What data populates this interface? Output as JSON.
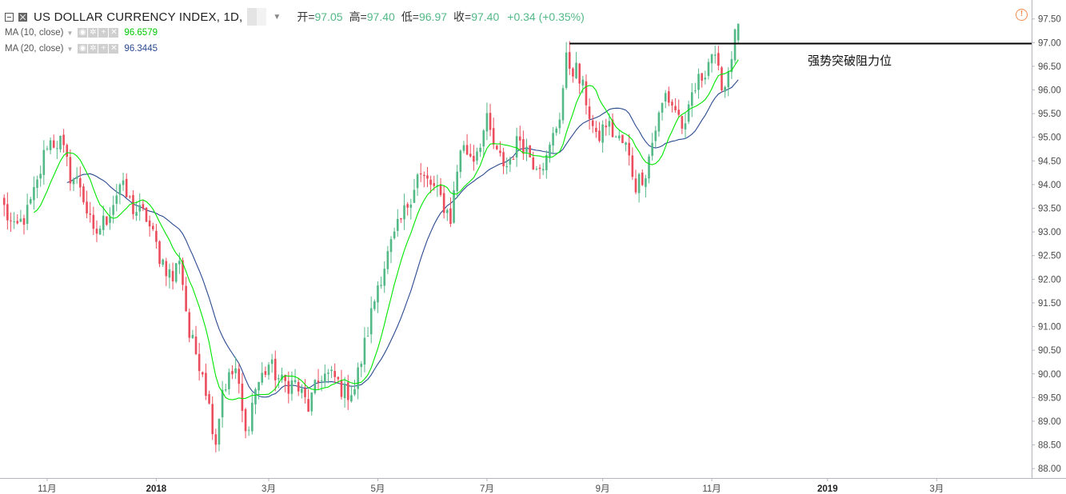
{
  "header": {
    "symbol": "US DOLLAR CURRENCY INDEX, 1D,",
    "open_label": "开=",
    "open": "97.05",
    "high_label": "高=",
    "high": "97.40",
    "low_label": "低=",
    "low": "96.97",
    "close_label": "收=",
    "close": "97.40",
    "change": "+0.34 (+0.35%)"
  },
  "indicators": [
    {
      "label": "MA (10, close)",
      "value": "96.6579",
      "color": "#00e600"
    },
    {
      "label": "MA (20, close)",
      "value": "96.3445",
      "color": "#2a4a8f"
    }
  ],
  "annotation": "强势突破阻力位",
  "colors": {
    "up": "#53b987",
    "down": "#eb4d5c",
    "ma10": "#00e600",
    "ma20": "#2a4a8f",
    "last_price_bg": "#53b987",
    "level_bg": "#000000"
  },
  "chart_data": {
    "type": "candlestick",
    "y_range": [
      87.8,
      97.85
    ],
    "y_ticks": [
      "88.00",
      "88.50",
      "89.00",
      "89.50",
      "90.00",
      "90.50",
      "91.00",
      "91.50",
      "92.00",
      "92.50",
      "93.00",
      "93.50",
      "94.00",
      "94.50",
      "95.00",
      "95.50",
      "96.00",
      "96.50",
      "97.00",
      "97.50"
    ],
    "x_ticks": [
      "11月",
      "2018",
      "3月",
      "5月",
      "7月",
      "9月",
      "11月",
      "2019",
      "3月"
    ],
    "x_tick_index": [
      13,
      46,
      80,
      113,
      146,
      181,
      214,
      249,
      282
    ],
    "x_total_slots": 312,
    "resistance_level": 96.98,
    "resistance_label": "96.98",
    "resistance_start_index": 171,
    "last_price": 97.4,
    "last_price_label": "97.40",
    "close_anchors": [
      [
        0,
        93.5
      ],
      [
        3,
        93.0
      ],
      [
        7,
        93.4
      ],
      [
        10,
        94.0
      ],
      [
        13,
        94.9
      ],
      [
        17,
        94.9
      ],
      [
        20,
        94.2
      ],
      [
        23,
        94.0
      ],
      [
        27,
        92.9
      ],
      [
        31,
        93.3
      ],
      [
        35,
        94.0
      ],
      [
        39,
        93.5
      ],
      [
        43,
        93.3
      ],
      [
        47,
        92.5
      ],
      [
        51,
        92.0
      ],
      [
        53,
        92.5
      ],
      [
        56,
        90.8
      ],
      [
        60,
        90.1
      ],
      [
        62,
        89.3
      ],
      [
        64,
        88.6
      ],
      [
        66,
        89.7
      ],
      [
        70,
        90.1
      ],
      [
        73,
        88.7
      ],
      [
        76,
        89.7
      ],
      [
        80,
        90.2
      ],
      [
        84,
        89.8
      ],
      [
        88,
        89.8
      ],
      [
        92,
        89.3
      ],
      [
        96,
        90.0
      ],
      [
        100,
        89.9
      ],
      [
        103,
        89.6
      ],
      [
        106,
        89.7
      ],
      [
        109,
        90.6
      ],
      [
        113,
        91.9
      ],
      [
        117,
        92.7
      ],
      [
        121,
        93.4
      ],
      [
        125,
        94.2
      ],
      [
        129,
        94.0
      ],
      [
        132,
        93.7
      ],
      [
        135,
        93.3
      ],
      [
        138,
        94.8
      ],
      [
        142,
        94.6
      ],
      [
        146,
        95.3
      ],
      [
        149,
        94.6
      ],
      [
        152,
        94.4
      ],
      [
        156,
        95.0
      ],
      [
        160,
        94.5
      ],
      [
        164,
        94.5
      ],
      [
        168,
        95.5
      ],
      [
        170,
        96.6
      ],
      [
        173,
        96.4
      ],
      [
        176,
        95.8
      ],
      [
        179,
        94.9
      ],
      [
        182,
        95.3
      ],
      [
        185,
        95.0
      ],
      [
        188,
        94.8
      ],
      [
        191,
        94.0
      ],
      [
        194,
        94.3
      ],
      [
        197,
        95.2
      ],
      [
        200,
        95.9
      ],
      [
        203,
        95.6
      ],
      [
        206,
        95.1
      ],
      [
        208,
        95.9
      ],
      [
        211,
        96.3
      ],
      [
        214,
        96.8
      ],
      [
        216,
        96.3
      ],
      [
        218,
        96.1
      ],
      [
        220,
        96.8
      ],
      [
        222,
        97.4
      ]
    ],
    "ma10_last": 96.6579,
    "ma20_last": 96.3445
  }
}
